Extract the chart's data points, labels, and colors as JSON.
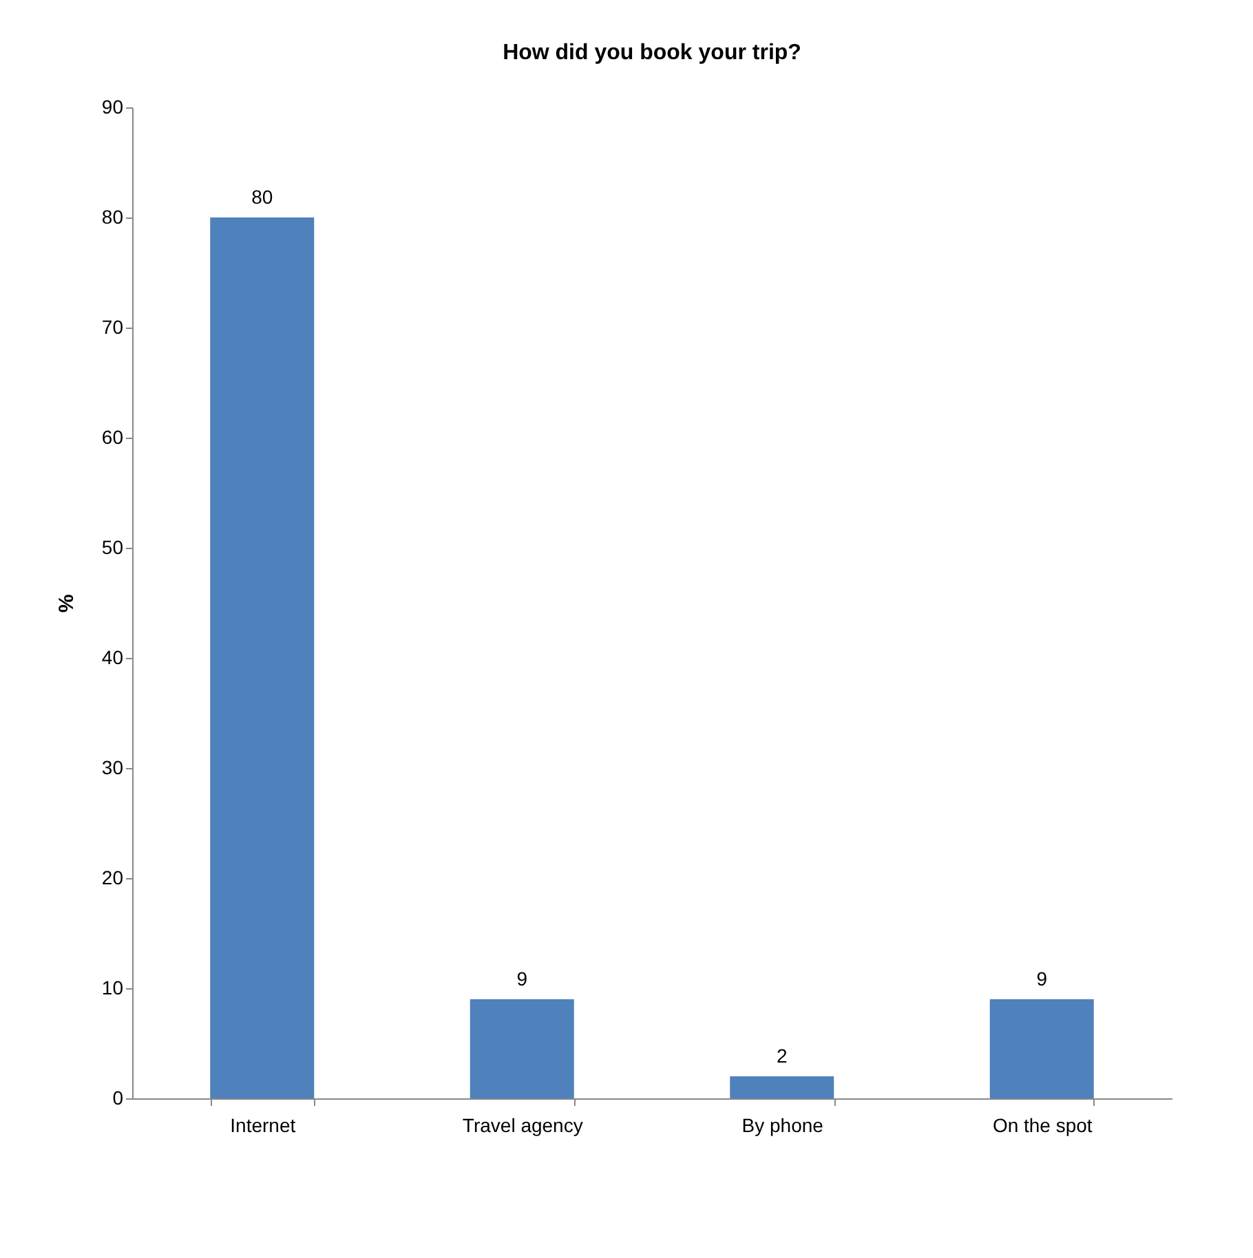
{
  "chart_data": {
    "type": "bar",
    "title": "How did you book your trip?",
    "ylabel": "%",
    "categories": [
      "Internet",
      "Travel agency",
      "By phone",
      "On the spot"
    ],
    "values": [
      80,
      9,
      2,
      9
    ],
    "color": "#4f81bd",
    "ylim": [
      0,
      90
    ],
    "yticks": [
      0,
      10,
      20,
      30,
      40,
      50,
      60,
      70,
      80,
      90
    ],
    "data_labels": true,
    "grid": false
  }
}
